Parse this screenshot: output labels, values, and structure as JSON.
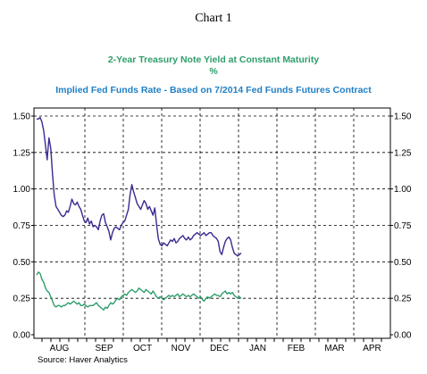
{
  "chart_label": "Chart 1",
  "subtitle_lines": [
    {
      "text": "2-Year Treasury Note Yield at Constant Maturity",
      "color": "#2e9e6a"
    },
    {
      "text": "%",
      "color": "#2e9e6a"
    },
    {
      "text": "Implied Fed Funds Rate - Based on 7/2014 Fed Funds Futures Contract",
      "color": "#1f7fc4"
    }
  ],
  "source": "Source: Haver Analytics",
  "chart_data": {
    "type": "line",
    "x_tick_labels": [
      "AUG",
      "SEP",
      "OCT",
      "NOV",
      "DEC",
      "JAN",
      "FEB",
      "MAR",
      "APR"
    ],
    "y_tick_labels": [
      "0.00",
      "0.25",
      "0.50",
      "0.75",
      "1.00",
      "1.25",
      "1.50"
    ],
    "ylim": [
      0,
      1.5
    ],
    "grid": true,
    "series": [
      {
        "color": "#3a2a8f",
        "values": [
          1.48,
          1.48,
          1.49,
          1.46,
          1.4,
          1.3,
          1.2,
          1.35,
          1.28,
          1.1,
          0.96,
          0.88,
          0.86,
          0.84,
          0.82,
          0.81,
          0.82,
          0.85,
          0.84,
          0.88,
          0.93,
          0.9,
          0.89,
          0.91,
          0.88,
          0.86,
          0.82,
          0.78,
          0.77,
          0.8,
          0.76,
          0.78,
          0.74,
          0.75,
          0.74,
          0.72,
          0.78,
          0.82,
          0.83,
          0.77,
          0.74,
          0.71,
          0.65,
          0.7,
          0.73,
          0.74,
          0.73,
          0.72,
          0.75,
          0.77,
          0.78,
          0.82,
          0.86,
          0.96,
          1.03,
          0.98,
          0.94,
          0.9,
          0.88,
          0.86,
          0.89,
          0.92,
          0.9,
          0.86,
          0.88,
          0.85,
          0.82,
          0.87,
          0.76,
          0.66,
          0.62,
          0.61,
          0.63,
          0.62,
          0.61,
          0.63,
          0.65,
          0.64,
          0.66,
          0.63,
          0.64,
          0.66,
          0.67,
          0.68,
          0.66,
          0.65,
          0.67,
          0.65,
          0.66,
          0.68,
          0.69,
          0.7,
          0.69,
          0.68,
          0.69,
          0.7,
          0.68,
          0.69,
          0.7,
          0.7,
          0.68,
          0.67,
          0.66,
          0.64,
          0.57,
          0.55,
          0.6,
          0.64,
          0.66,
          0.67,
          0.65,
          0.6,
          0.56,
          0.55,
          0.54,
          0.55,
          0.56
        ]
      },
      {
        "color": "#2e9e6a",
        "values": [
          0.41,
          0.43,
          0.42,
          0.38,
          0.36,
          0.32,
          0.3,
          0.29,
          0.26,
          0.23,
          0.2,
          0.19,
          0.2,
          0.2,
          0.19,
          0.2,
          0.2,
          0.21,
          0.22,
          0.21,
          0.22,
          0.23,
          0.22,
          0.21,
          0.22,
          0.2,
          0.2,
          0.21,
          0.2,
          0.19,
          0.2,
          0.2,
          0.2,
          0.21,
          0.22,
          0.2,
          0.19,
          0.18,
          0.17,
          0.19,
          0.18,
          0.2,
          0.22,
          0.21,
          0.22,
          0.24,
          0.25,
          0.24,
          0.26,
          0.27,
          0.28,
          0.27,
          0.29,
          0.3,
          0.31,
          0.3,
          0.29,
          0.3,
          0.32,
          0.31,
          0.3,
          0.29,
          0.31,
          0.3,
          0.29,
          0.28,
          0.3,
          0.28,
          0.26,
          0.25,
          0.26,
          0.25,
          0.24,
          0.25,
          0.26,
          0.27,
          0.26,
          0.27,
          0.26,
          0.27,
          0.28,
          0.26,
          0.27,
          0.28,
          0.27,
          0.26,
          0.27,
          0.26,
          0.27,
          0.28,
          0.27,
          0.26,
          0.25,
          0.26,
          0.24,
          0.23,
          0.25,
          0.26,
          0.25,
          0.26,
          0.27,
          0.28,
          0.27,
          0.27,
          0.26,
          0.28,
          0.29,
          0.3,
          0.28,
          0.29,
          0.28,
          0.29,
          0.27,
          0.26,
          0.25,
          0.26,
          0.25
        ]
      }
    ]
  }
}
